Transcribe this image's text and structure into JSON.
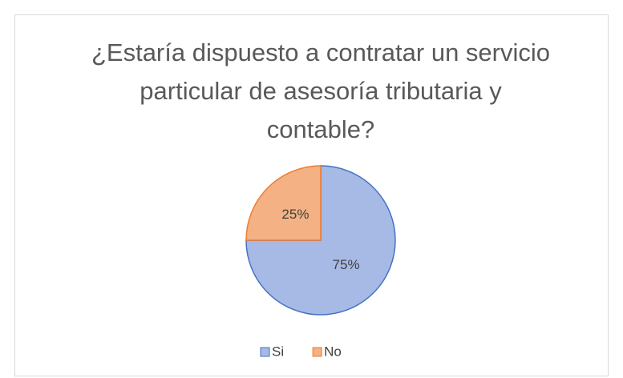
{
  "chart_data": {
    "type": "pie",
    "title": "¿Estaría dispuesto a contratar un servicio particular de asesoría tributaria y contable?",
    "categories": [
      "Si",
      "No"
    ],
    "values": [
      75,
      25
    ],
    "value_labels": [
      "75%",
      "25%"
    ],
    "colors": [
      "#a7b9e5",
      "#f4b183"
    ],
    "edge_colors": [
      "#4472c4",
      "#ed7d31"
    ],
    "legend": "bottom"
  }
}
